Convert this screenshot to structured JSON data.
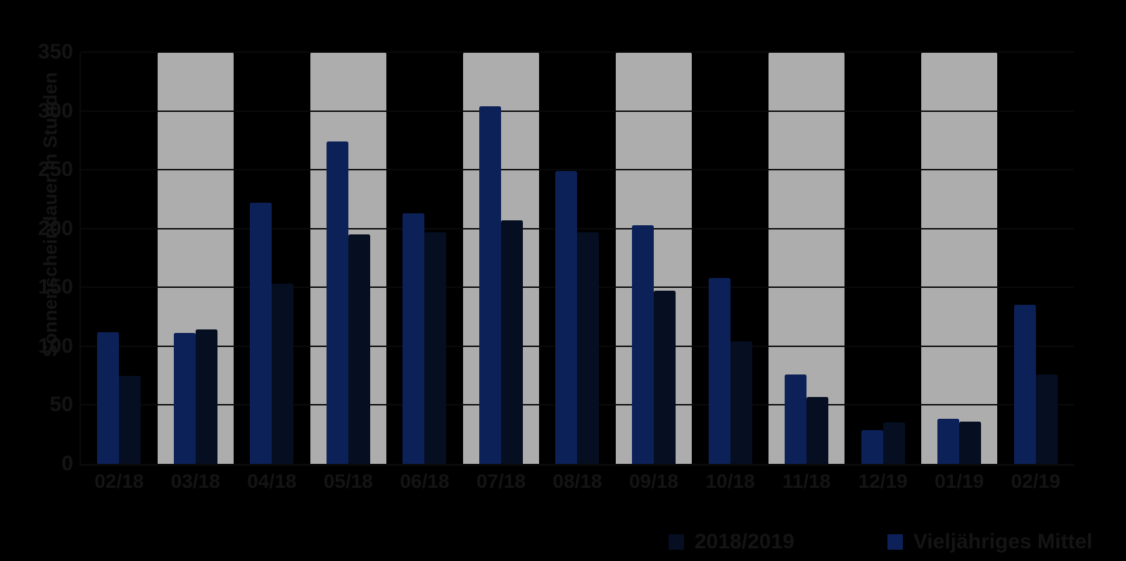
{
  "page": {
    "background_color": "#000000",
    "text_color": "#141414"
  },
  "chart_data": {
    "type": "bar",
    "title": "",
    "xlabel": "",
    "ylabel": "Sonnenscheindauer in Stunden",
    "ylim": [
      0,
      350
    ],
    "yticks": [
      0,
      50,
      100,
      150,
      200,
      250,
      300,
      350
    ],
    "grid": {
      "horizontal": true,
      "color": "#0A0A0A",
      "visible_over_bands_only": true
    },
    "categories": [
      "02/18",
      "03/18",
      "04/18",
      "05/18",
      "06/18",
      "07/18",
      "08/18",
      "09/18",
      "10/18",
      "11/18",
      "12/19",
      "01/19",
      "02/19"
    ],
    "series": [
      {
        "name": "2018/2019",
        "color": "#060E21",
        "bar_position": "right",
        "values": [
          75,
          114,
          153,
          195,
          197,
          207,
          197,
          147,
          104,
          57,
          35,
          36,
          76
        ]
      },
      {
        "name": "Vieljähriges Mittel",
        "color": "#0D2159",
        "bar_position": "left",
        "values": [
          112,
          111,
          222,
          274,
          213,
          304,
          249,
          203,
          158,
          76,
          29,
          38,
          135
        ]
      }
    ],
    "background_bands": {
      "color": "#ADADAD",
      "categories": [
        "03/18",
        "05/18",
        "07/18",
        "09/18",
        "11/18",
        "01/19"
      ],
      "top_value": 350,
      "rule_interval": 50,
      "rule_color": "#0A0A0A"
    },
    "legend_position": "bottom-right"
  }
}
